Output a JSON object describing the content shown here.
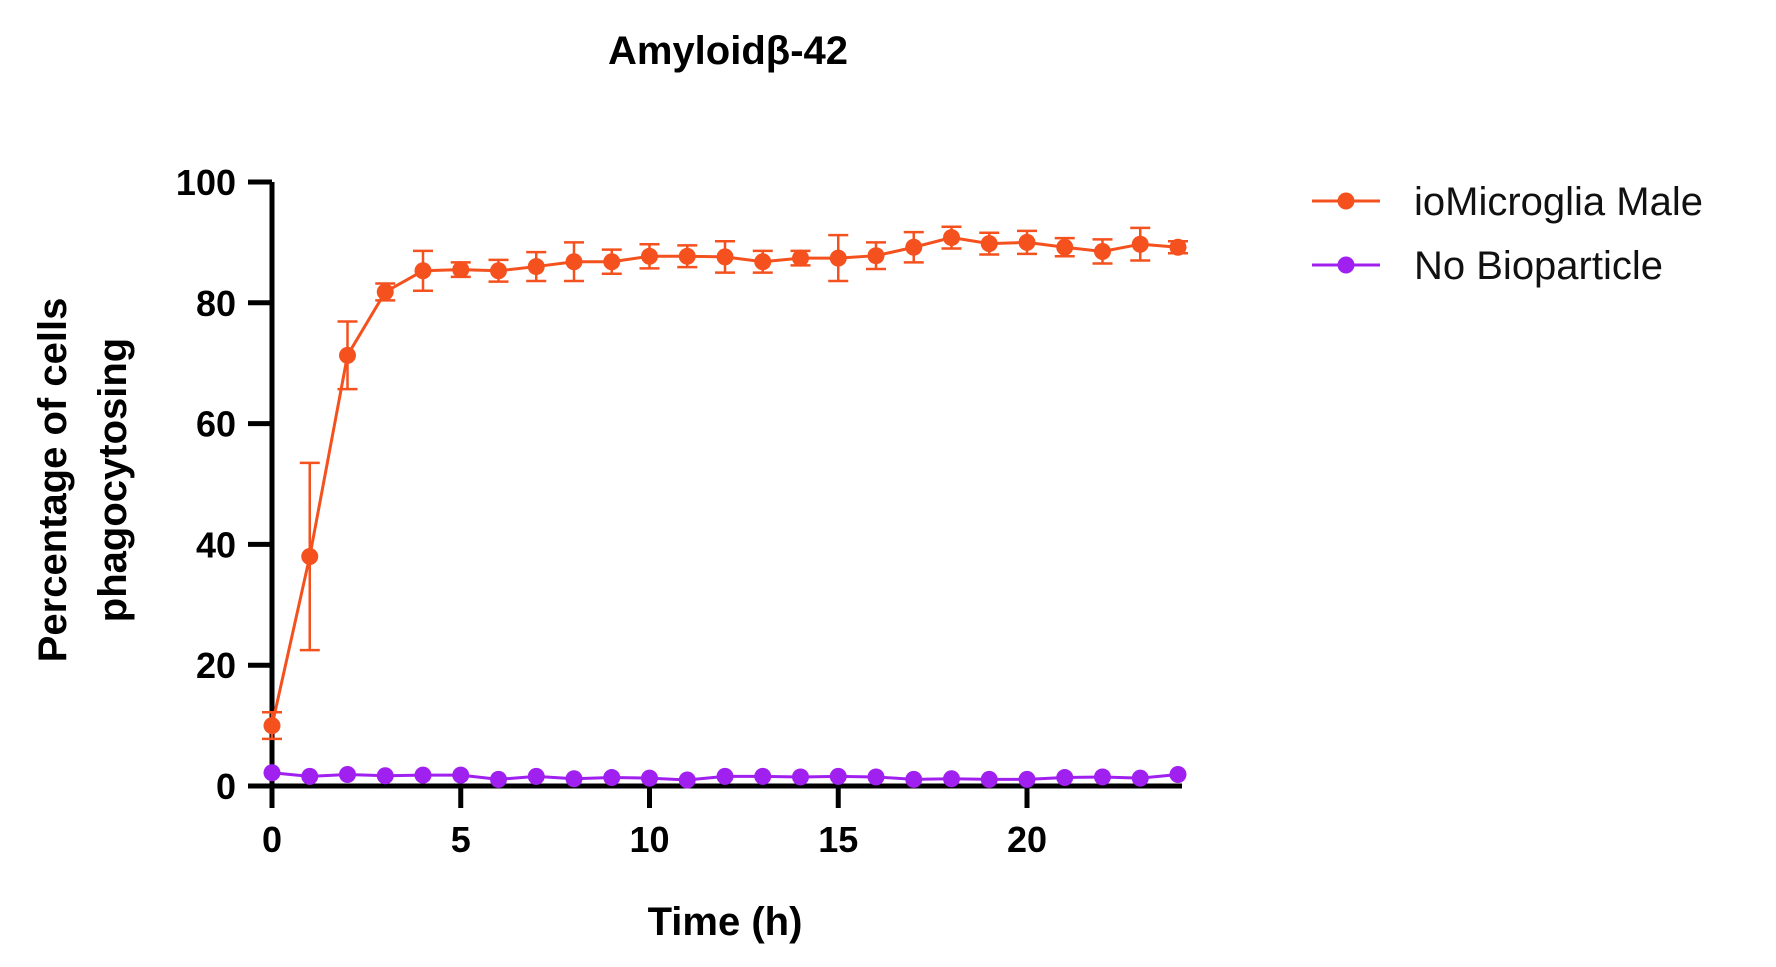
{
  "chart_data": {
    "type": "line",
    "title": "Amyloidβ-42",
    "xlabel": "Time (h)",
    "ylabel": [
      "Percentage of cells",
      "phagocytosing"
    ],
    "xlim": [
      0,
      24
    ],
    "ylim": [
      0,
      100
    ],
    "xticks": [
      0,
      5,
      10,
      15,
      20
    ],
    "yticks": [
      0,
      20,
      40,
      60,
      80,
      100
    ],
    "grid": false,
    "legend_position": "top-right",
    "x": [
      0,
      1,
      2,
      3,
      4,
      5,
      6,
      7,
      8,
      9,
      10,
      11,
      12,
      13,
      14,
      15,
      16,
      17,
      18,
      19,
      20,
      21,
      22,
      23,
      24
    ],
    "series": [
      {
        "name": "ioMicroglia Male",
        "color": "#f4511e",
        "values": [
          10,
          38,
          71.3,
          81.8,
          85.3,
          85.5,
          85.3,
          86,
          86.8,
          86.8,
          87.7,
          87.7,
          87.6,
          86.8,
          87.4,
          87.4,
          87.8,
          89.2,
          90.8,
          89.8,
          90,
          89.2,
          88.5,
          89.7,
          89.2
        ],
        "errors": [
          2.2,
          15.5,
          5.6,
          1.4,
          3.3,
          1.2,
          1.8,
          2.4,
          3.2,
          2.0,
          2.0,
          1.8,
          2.6,
          1.8,
          1.2,
          3.8,
          2.2,
          2.5,
          1.8,
          1.8,
          1.9,
          1.5,
          2.0,
          2.7,
          1.0
        ]
      },
      {
        "name": "No Bioparticle",
        "color": "#a020f0",
        "values": [
          2.2,
          1.6,
          1.9,
          1.7,
          1.8,
          1.8,
          1.1,
          1.6,
          1.2,
          1.4,
          1.3,
          1.0,
          1.6,
          1.6,
          1.5,
          1.6,
          1.5,
          1.1,
          1.2,
          1.1,
          1.1,
          1.4,
          1.5,
          1.3,
          1.9
        ]
      }
    ]
  }
}
